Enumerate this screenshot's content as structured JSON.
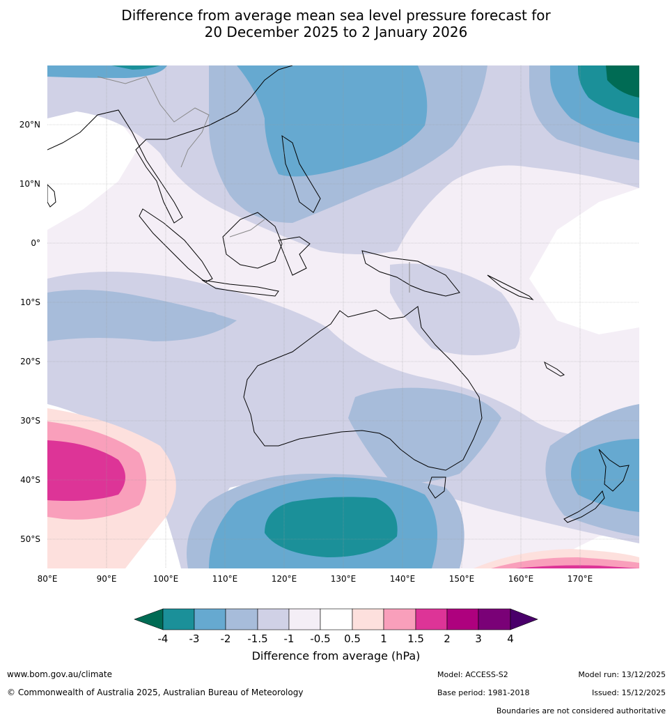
{
  "title_line1": "Difference from average mean sea level pressure forecast for",
  "title_line2": "20 December 2025 to 2 January 2026",
  "lat_labels": [
    "20°N",
    "10°N",
    "0°",
    "10°S",
    "20°S",
    "30°S",
    "40°S",
    "50°S"
  ],
  "lon_labels": [
    "80°E",
    "90°E",
    "100°E",
    "110°E",
    "120°E",
    "130°E",
    "140°E",
    "150°E",
    "160°E",
    "170°E"
  ],
  "colorbar": {
    "title": "Difference from average (hPa)",
    "ticks": [
      "-4",
      "-3",
      "-2",
      "-1.5",
      "-1",
      "-0.5",
      "0.5",
      "1",
      "1.5",
      "2",
      "3",
      "4"
    ],
    "colors": {
      "lt_m4": "#006b54",
      "m4_m3": "#1b9099",
      "m3_m2": "#66a9d0",
      "m2_m15": "#a7bcda",
      "m15_m1": "#d0d1e6",
      "m1_m05": "#f4eef6",
      "neutral": "#ffffff",
      "p05_p1": "#fde0dd",
      "p1_p15": "#f99fbb",
      "p15_p2": "#dd3497",
      "p2_p3": "#ae017e",
      "p3_p4": "#7a0177",
      "gt_p4": "#49006a"
    }
  },
  "footer": {
    "website": "www.bom.gov.au/climate",
    "copyright": "© Commonwealth of Australia 2025, Australian Bureau of Meteorology",
    "model": "Model: ACCESS-S2",
    "base_period": "Base period: 1981-2018",
    "model_run": "Model run: 13/12/2025",
    "issued": "Issued: 15/12/2025",
    "boundaries": "Boundaries are not considered authoritative"
  }
}
